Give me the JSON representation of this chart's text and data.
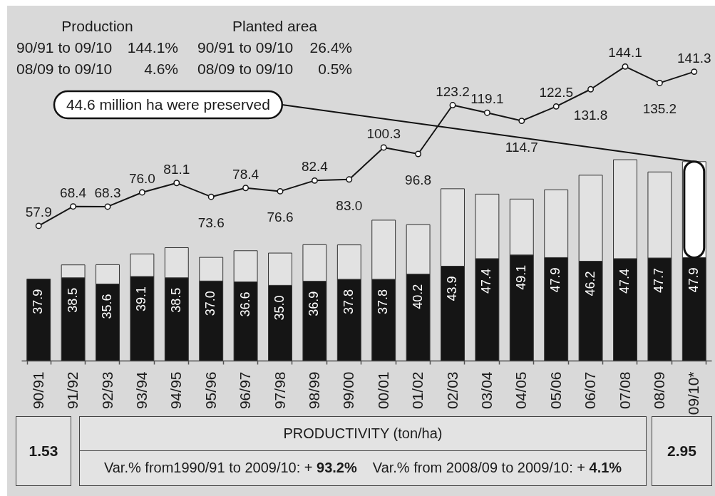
{
  "chart_data": {
    "type": "bar",
    "stacked": true,
    "tick_labels": "x",
    "marker": "circle",
    "categories": [
      "90/91",
      "91/92",
      "92/93",
      "93/94",
      "94/95",
      "95/96",
      "96/97",
      "97/98",
      "98/99",
      "99/00",
      "00/01",
      "01/02",
      "02/03",
      "03/04",
      "04/05",
      "05/06",
      "06/07",
      "07/08",
      "08/09",
      "09/10*"
    ],
    "ylim": [
      0,
      165
    ],
    "y2lim": [
      -15,
      177
    ],
    "series": [
      {
        "color": "#151515",
        "values": [
          37.9,
          38.5,
          35.6,
          39.1,
          38.5,
          37.0,
          36.6,
          35.0,
          36.9,
          37.8,
          37.8,
          40.2,
          43.9,
          47.4,
          49.1,
          47.9,
          46.2,
          47.4,
          47.7,
          47.9
        ],
        "value_labels": [
          "37.9",
          "38.5",
          "35.6",
          "39.1",
          "38.5",
          "37.0",
          "36.6",
          "35.0",
          "36.9",
          "37.8",
          "37.8",
          "40.2",
          "43.9",
          "47.4",
          "49.1",
          "47.9",
          "46.2",
          "47.4",
          "47.7",
          "47.9"
        ]
      },
      {
        "colors": [
          null,
          "#e2e2e2",
          "#e2e2e2",
          "#e2e2e2",
          "#e2e2e2",
          "#e2e2e2",
          "#e2e2e2",
          "#e2e2e2",
          "#e2e2e2",
          "#e2e2e2",
          "#e2e2e2",
          "#e2e2e2",
          "#e2e2e2",
          "#e2e2e2",
          "#e2e2e2",
          "#e2e2e2",
          "#e2e2e2",
          "#e2e2e2",
          "#e2e2e2",
          "#ffffff"
        ],
        "values": [
          null,
          6,
          9,
          10.5,
          14,
          11,
          14.5,
          15,
          17,
          16,
          27.5,
          23,
          36,
          30,
          26,
          31.5,
          40,
          46,
          40,
          44.6
        ]
      },
      {
        "type": "line",
        "axis": "y2",
        "color": "#151515",
        "values": [
          57.9,
          68.4,
          68.3,
          76.0,
          81.1,
          73.6,
          78.4,
          76.6,
          82.4,
          83.0,
          100.3,
          96.8,
          123.2,
          119.1,
          114.7,
          122.5,
          131.8,
          144.1,
          135.2,
          141.3
        ],
        "value_labels": [
          "57.9",
          "68.4",
          "68.3",
          "76.0",
          "81.1",
          "73.6",
          "78.4",
          "76.6",
          "82.4",
          "83.0",
          "100.3",
          "96.8",
          "123.2",
          "119.1",
          "114.7",
          "122.5",
          "131.8",
          "144.1",
          "135.2",
          "141.3"
        ]
      }
    ],
    "annotations": [
      "Production",
      "90/91 to 09/10 144.1%",
      "08/09 to 09/10 4.6%",
      "Planted area",
      "90/91 to 09/10 26.4%",
      "08/09 to 09/10 0.5%",
      {
        "text": "44.6 million ha were preserved",
        "x": "09/10*",
        "y": 92.5
      },
      "1.53",
      "PRODUCTIVITY (ton/ha)",
      "2.95",
      "Var.% from1990/91 to 2009/10: + 93.2%",
      "Var.% from 2008/09 to 2009/10: + 4.1%"
    ]
  }
}
